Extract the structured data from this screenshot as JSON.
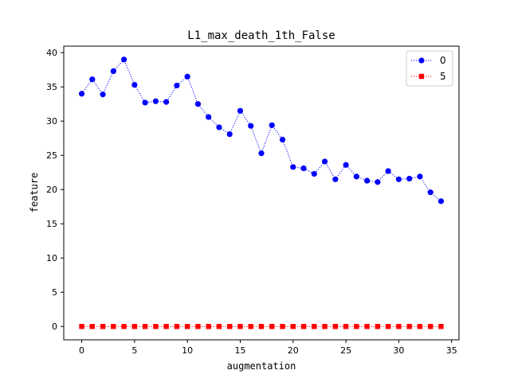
{
  "chart_data": {
    "type": "line",
    "title": "L1_max_death_1th_False",
    "xlabel": "augmentation",
    "ylabel": "feature",
    "xlim": [
      -1.7,
      35.7
    ],
    "ylim": [
      -1.95,
      40.95
    ],
    "xticks": [
      0,
      5,
      10,
      15,
      20,
      25,
      30,
      35
    ],
    "yticks": [
      0,
      5,
      10,
      15,
      20,
      25,
      30,
      35,
      40
    ],
    "legend": "top-right",
    "grid": false,
    "x": [
      0,
      1,
      2,
      3,
      4,
      5,
      6,
      7,
      8,
      9,
      10,
      11,
      12,
      13,
      14,
      15,
      16,
      17,
      18,
      19,
      20,
      21,
      22,
      23,
      24,
      25,
      26,
      27,
      28,
      29,
      30,
      31,
      32,
      33,
      34
    ],
    "series": [
      {
        "name": "0",
        "color": "#0000ff",
        "marker": "circle",
        "linestyle": "dotted",
        "values": [
          34.0,
          36.1,
          33.9,
          37.3,
          39.0,
          35.3,
          32.7,
          32.9,
          32.8,
          35.2,
          36.5,
          32.5,
          30.6,
          29.1,
          28.1,
          31.5,
          29.3,
          25.3,
          29.4,
          27.3,
          23.3,
          23.1,
          22.3,
          24.1,
          21.5,
          23.6,
          21.9,
          21.3,
          21.1,
          22.7,
          21.5,
          21.6,
          21.9,
          19.6,
          18.3
        ]
      },
      {
        "name": "5",
        "color": "#ff0000",
        "marker": "square",
        "linestyle": "dotted",
        "values": [
          0,
          0,
          0,
          0,
          0,
          0,
          0,
          0,
          0,
          0,
          0,
          0,
          0,
          0,
          0,
          0,
          0,
          0,
          0,
          0,
          0,
          0,
          0,
          0,
          0,
          0,
          0,
          0,
          0,
          0,
          0,
          0,
          0,
          0,
          0
        ]
      }
    ]
  }
}
